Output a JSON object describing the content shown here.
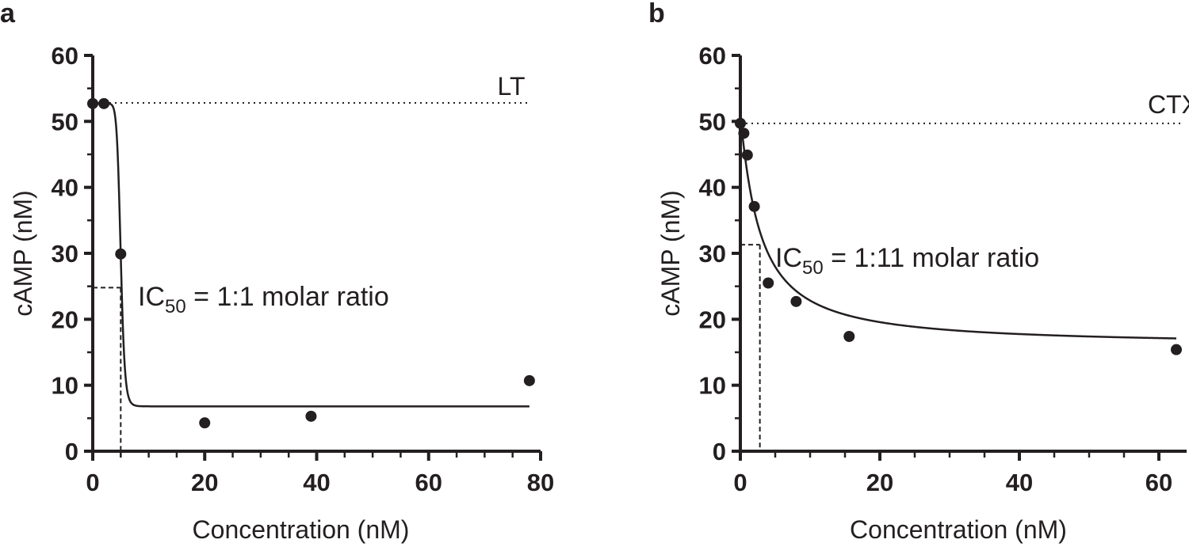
{
  "chart_data": [
    {
      "panel_label": "a",
      "type": "scatter",
      "xlabel": "Concentration (nM)",
      "ylabel": "cAMP (nM)",
      "xlim": [
        0,
        80
      ],
      "ylim": [
        0,
        60
      ],
      "xticks": [
        0,
        20,
        40,
        60,
        80
      ],
      "yticks": [
        0,
        10,
        20,
        30,
        40,
        50,
        60
      ],
      "x_minor_step": 5,
      "y_minor_step": 5,
      "series": [
        {
          "name": "LT",
          "x": [
            0,
            2,
            5,
            20,
            39,
            78
          ],
          "y": [
            52.7,
            52.7,
            29.9,
            4.3,
            5.3,
            10.7
          ]
        }
      ],
      "fit": {
        "top": 52.7,
        "bottom": 6.8,
        "ic50": 5,
        "hill": 14,
        "x_end": 78
      },
      "baseline_y": 52.8,
      "ic50_guide": {
        "x": 5,
        "y": 24.8
      },
      "ic50_label": {
        "prefix": "IC",
        "sub": "50",
        "suffix": " = 1:1 molar ratio"
      }
    },
    {
      "panel_label": "b",
      "type": "scatter",
      "xlabel": "Concentration (nM)",
      "ylabel": "cAMP (nM)",
      "xlim": [
        0,
        62.5
      ],
      "ylim": [
        0,
        60
      ],
      "xticks": [
        0,
        20,
        40,
        60
      ],
      "yticks": [
        0,
        10,
        20,
        30,
        40,
        50,
        60
      ],
      "x_minor_step": 5,
      "y_minor_step": 5,
      "series": [
        {
          "name": "CTX",
          "x": [
            0,
            0.5,
            1,
            2,
            4,
            8,
            15.6,
            62.5
          ],
          "y": [
            49.7,
            48.2,
            44.9,
            37.1,
            25.5,
            22.7,
            17.4,
            15.4
          ]
        }
      ],
      "fit": {
        "top": 50.6,
        "bottom": 16.0,
        "ic50": 2.8,
        "hill": 1.1,
        "x_end": 62.5
      },
      "baseline_y": 49.7,
      "ic50_guide": {
        "x": 2.8,
        "y": 31.3
      },
      "ic50_label": {
        "prefix": "IC",
        "sub": "50",
        "suffix": " = 1:11 molar ratio"
      }
    }
  ]
}
